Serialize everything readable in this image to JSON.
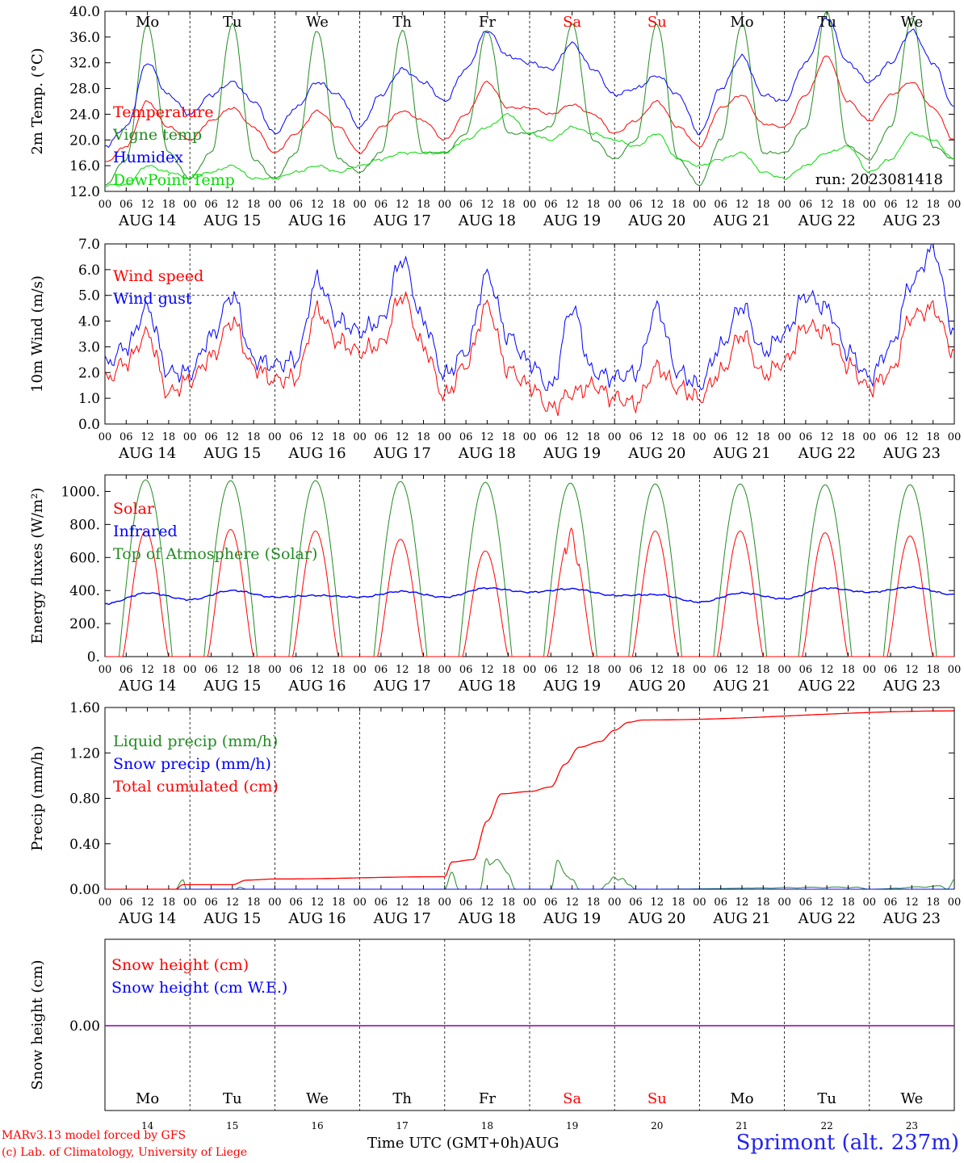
{
  "chart_data": [
    {
      "type": "line",
      "ylabel": "2m Temp. (°C)",
      "ylim": [
        12.0,
        40.0
      ],
      "y_ticks": [
        "12.0",
        "16.0",
        "20.0",
        "24.0",
        "28.0",
        "32.0",
        "36.0",
        "40.0"
      ],
      "annotation": "run: 2023081418",
      "series": [
        {
          "name": "Temperature",
          "color": "#ff0000",
          "x": [
            0,
            6,
            12,
            18,
            24,
            30,
            36,
            42,
            48,
            54,
            60,
            66,
            72,
            78,
            84,
            90,
            96,
            102,
            108,
            114,
            120,
            126,
            132,
            138,
            144,
            150,
            156,
            162,
            168,
            174,
            180,
            186,
            192,
            198,
            204,
            210,
            216,
            222,
            228,
            234,
            240
          ],
          "values": [
            16.5,
            19,
            26,
            22,
            20,
            23,
            25,
            22,
            18,
            21,
            24.5,
            22,
            18,
            22,
            24.5,
            23,
            20,
            24,
            29,
            25,
            25,
            24,
            25.5,
            24,
            21,
            23,
            26,
            22,
            19,
            25,
            27,
            22.5,
            22,
            27,
            33,
            26,
            23,
            27,
            29,
            25,
            20
          ]
        },
        {
          "name": "Vigne temp",
          "color": "#228b22",
          "x": [
            0,
            6,
            12,
            18,
            24,
            30,
            36,
            42,
            48,
            54,
            60,
            66,
            72,
            78,
            84,
            90,
            96,
            102,
            108,
            114,
            120,
            126,
            132,
            138,
            144,
            150,
            156,
            162,
            168,
            174,
            180,
            186,
            192,
            198,
            204,
            210,
            216,
            222,
            228,
            234,
            240
          ],
          "values": [
            13,
            17,
            38,
            18,
            14,
            18,
            38,
            17,
            14,
            18,
            37,
            17,
            15,
            18,
            37,
            18,
            18,
            21,
            37,
            21,
            21,
            22,
            38,
            20,
            17,
            20,
            38,
            17,
            13,
            20,
            38,
            18,
            18,
            22,
            40,
            19,
            17,
            22,
            39,
            19,
            17
          ]
        },
        {
          "name": "Humidex",
          "color": "#0000ff",
          "x": [
            0,
            6,
            12,
            18,
            24,
            30,
            36,
            42,
            48,
            54,
            60,
            66,
            72,
            78,
            84,
            90,
            96,
            102,
            108,
            114,
            120,
            126,
            132,
            138,
            144,
            150,
            156,
            162,
            168,
            174,
            180,
            186,
            192,
            198,
            204,
            210,
            216,
            222,
            228,
            234,
            240
          ],
          "values": [
            19,
            22,
            32,
            27,
            24,
            27,
            29,
            26,
            21,
            25,
            29,
            27,
            22,
            27,
            31,
            29,
            26,
            31,
            37,
            33,
            32,
            31,
            35,
            31,
            27,
            28,
            30,
            27,
            21,
            28,
            33,
            27,
            26,
            32,
            39,
            32,
            29,
            32,
            37,
            32,
            25
          ]
        },
        {
          "name": "DewPoint Temp",
          "color": "#00dd00",
          "x": [
            0,
            6,
            12,
            18,
            24,
            30,
            36,
            42,
            48,
            54,
            60,
            66,
            72,
            78,
            84,
            90,
            96,
            102,
            108,
            114,
            120,
            126,
            132,
            138,
            144,
            150,
            156,
            162,
            168,
            174,
            180,
            186,
            192,
            198,
            204,
            210,
            216,
            222,
            228,
            234,
            240
          ],
          "values": [
            13,
            13,
            16,
            15,
            14,
            15,
            16,
            14,
            14,
            15,
            16,
            15,
            16,
            17,
            18,
            18,
            18,
            20,
            22,
            24,
            21,
            20,
            22,
            21,
            20,
            19,
            21,
            17,
            16,
            17,
            18,
            15,
            14,
            16,
            18,
            19,
            15,
            17,
            21,
            20,
            17
          ]
        }
      ]
    },
    {
      "type": "line",
      "ylabel": "10m Wind (m/s)",
      "ylim": [
        0.0,
        7.0
      ],
      "y_ticks": [
        "0.0",
        "1.0",
        "2.0",
        "3.0",
        "4.0",
        "5.0",
        "6.0",
        "7.0"
      ],
      "ref_line": 5.0,
      "series": [
        {
          "name": "Wind speed",
          "color": "#ff0000",
          "x": [
            0,
            6,
            12,
            18,
            24,
            30,
            36,
            42,
            48,
            54,
            60,
            66,
            72,
            78,
            84,
            90,
            96,
            102,
            108,
            114,
            120,
            126,
            132,
            138,
            144,
            150,
            156,
            162,
            168,
            174,
            180,
            186,
            192,
            198,
            204,
            210,
            216,
            222,
            228,
            234,
            240
          ],
          "values": [
            1.7,
            2.4,
            3.5,
            1.2,
            1.7,
            2.6,
            4,
            2.2,
            1.7,
            1.8,
            4.4,
            3.2,
            2.8,
            3.1,
            5,
            3,
            1.1,
            2.3,
            4.6,
            2.1,
            1.5,
            0.6,
            1.2,
            1.5,
            1,
            0.8,
            2.2,
            1.4,
            1,
            2,
            3.5,
            1.9,
            2.4,
            3.8,
            3.6,
            2.3,
            1.4,
            2,
            4.2,
            4.5,
            2.8
          ]
        },
        {
          "name": "Wind gust",
          "color": "#0000ff",
          "x": [
            0,
            6,
            12,
            18,
            24,
            30,
            36,
            42,
            48,
            54,
            60,
            66,
            72,
            78,
            84,
            90,
            96,
            102,
            108,
            114,
            120,
            126,
            132,
            138,
            144,
            150,
            156,
            162,
            168,
            174,
            180,
            186,
            192,
            198,
            204,
            210,
            216,
            222,
            228,
            234,
            240
          ],
          "values": [
            2.3,
            3,
            4.5,
            2,
            2,
            3.4,
            5,
            2.5,
            2.3,
            2.5,
            5.6,
            4,
            3.6,
            4,
            6.4,
            4,
            1.9,
            2.8,
            5.8,
            3.4,
            2.4,
            1.4,
            4.5,
            2,
            1.8,
            2,
            4.5,
            2,
            1.5,
            3,
            4.6,
            2.8,
            3.5,
            5,
            4.5,
            2.8,
            1.8,
            3,
            5.5,
            6.8,
            3.6
          ]
        }
      ]
    },
    {
      "type": "line",
      "ylabel": "Energy fluxes (W/m²)",
      "ylim": [
        0,
        1100
      ],
      "y_ticks": [
        "0.",
        "200.",
        "400.",
        "600.",
        "800.",
        "1000."
      ],
      "series": [
        {
          "name": "Solar",
          "color": "#ff0000",
          "peaks": [
            760,
            770,
            760,
            710,
            640,
            720,
            760,
            760,
            750,
            730
          ]
        },
        {
          "name": "Infrared",
          "color": "#0000ff",
          "x": [
            0,
            12,
            24,
            36,
            48,
            60,
            72,
            84,
            96,
            108,
            120,
            132,
            144,
            156,
            168,
            180,
            192,
            204,
            216,
            228,
            240
          ],
          "values": [
            320,
            385,
            345,
            400,
            360,
            370,
            360,
            395,
            360,
            415,
            390,
            410,
            370,
            375,
            330,
            385,
            350,
            415,
            390,
            420,
            375
          ]
        },
        {
          "name": "Top of Atmosphere (Solar)",
          "color": "#228b22",
          "peaks": [
            1070,
            1065,
            1065,
            1060,
            1055,
            1050,
            1045,
            1045,
            1040,
            1040
          ]
        }
      ]
    },
    {
      "type": "line",
      "ylabel": "Precip (mm/h)",
      "ylim": [
        0.0,
        1.6
      ],
      "y_ticks": [
        "0.00",
        "0.40",
        "0.80",
        "1.20",
        "1.60"
      ],
      "series": [
        {
          "name": "Liquid precip (mm/h)",
          "color": "#228b22",
          "x": [
            0,
            20,
            22,
            23,
            24,
            37,
            38,
            40,
            96,
            98,
            100,
            106,
            108,
            110,
            114,
            116,
            118,
            120,
            126,
            128,
            130,
            132,
            134,
            140,
            142,
            144,
            146,
            148,
            150,
            152,
            212,
            216,
            236,
            238,
            240
          ],
          "values": [
            0,
            0,
            0.13,
            0,
            0,
            0,
            0.02,
            0,
            0,
            0.15,
            0,
            0,
            0.37,
            0.3,
            0.15,
            0,
            0,
            0,
            0,
            0.27,
            0.2,
            0.1,
            0,
            0,
            0.05,
            0.14,
            0.12,
            0.04,
            0,
            0,
            0.02,
            0,
            0.03,
            0,
            0.12
          ]
        },
        {
          "name": "Snow precip (mm/h)",
          "color": "#0000ff",
          "x": [
            0,
            240
          ],
          "values": [
            0,
            0
          ]
        },
        {
          "name": "Total cumulated (cm)",
          "color": "#ff0000",
          "x": [
            0,
            20,
            22,
            36,
            40,
            48,
            96,
            98,
            104,
            108,
            112,
            120,
            126,
            130,
            134,
            140,
            144,
            148,
            152,
            240
          ],
          "values": [
            0,
            0,
            0.04,
            0.04,
            0.08,
            0.09,
            0.11,
            0.24,
            0.26,
            0.6,
            0.84,
            0.86,
            0.9,
            1.1,
            1.25,
            1.3,
            1.4,
            1.47,
            1.49,
            1.57
          ]
        }
      ]
    },
    {
      "type": "line",
      "ylabel": "Snow height (cm)",
      "y_ticks": [
        "0.00"
      ],
      "series": [
        {
          "name": "Snow height (cm)",
          "color": "#ff0000",
          "x": [
            0,
            240
          ],
          "values": [
            0,
            0
          ]
        },
        {
          "name": "Snow height (cm W.E.)",
          "color": "#0000ff",
          "x": [
            0,
            240
          ],
          "values": [
            0,
            0
          ]
        }
      ]
    }
  ],
  "x_axis": {
    "hour_ticks": [
      "00",
      "06",
      "12",
      "18"
    ],
    "day_labels": [
      "AUG 14",
      "AUG 15",
      "AUG 16",
      "AUG 17",
      "AUG 18",
      "AUG 19",
      "AUG 20",
      "AUG 21",
      "AUG 22",
      "AUG 23"
    ],
    "weekdays": [
      {
        "label": "Mo",
        "color": "#000000"
      },
      {
        "label": "Tu",
        "color": "#000000"
      },
      {
        "label": "We",
        "color": "#000000"
      },
      {
        "label": "Th",
        "color": "#000000"
      },
      {
        "label": "Fr",
        "color": "#000000"
      },
      {
        "label": "Sa",
        "color": "#ff0000"
      },
      {
        "label": "Su",
        "color": "#ff0000"
      },
      {
        "label": "Mo",
        "color": "#000000"
      },
      {
        "label": "Tu",
        "color": "#000000"
      },
      {
        "label": "We",
        "color": "#000000"
      }
    ],
    "day_numbers": [
      "14",
      "15",
      "16",
      "17",
      "18",
      "19",
      "20",
      "21",
      "22",
      "23"
    ]
  },
  "footer": {
    "model": "MARv3.13 model forced by GFS",
    "credit": "(c) Lab. of Climatology, University of Liege",
    "axis_title": "Time UTC (GMT+0h)AUG",
    "station": "Sprimont (alt. 237m)"
  }
}
